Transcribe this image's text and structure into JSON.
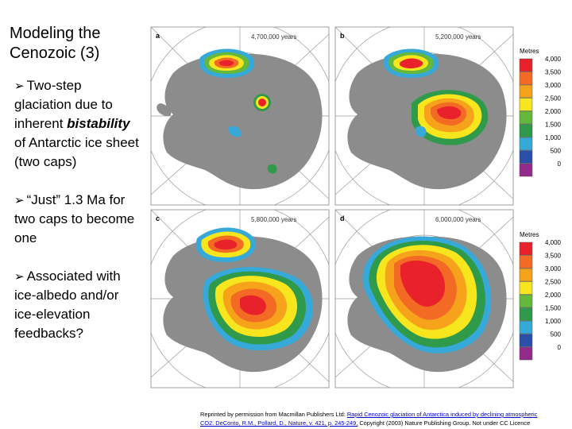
{
  "slide": {
    "title_line1": "Modeling the",
    "title_line2": "Cenozoic (3)",
    "bullets": [
      {
        "text_before": "Two-step glaciation due to inherent ",
        "emphasis": "bistability",
        "text_after": " of Antarctic ice sheet (two caps)"
      },
      {
        "text_before": "“Just” 1.3 Ma for two caps to become one",
        "emphasis": "",
        "text_after": ""
      },
      {
        "text_before": "Associated with ice-albedo and/or ice-elevation feedbacks?",
        "emphasis": "",
        "text_after": ""
      }
    ],
    "bullet_icon": "arrow-bullet-icon"
  },
  "figure": {
    "panels": [
      {
        "letter": "a",
        "years": "4,700,000  years"
      },
      {
        "letter": "b",
        "years": "5,200,000  years"
      },
      {
        "letter": "c",
        "years": "5,800,000  years"
      },
      {
        "letter": "d",
        "years": "6,000,000  years"
      }
    ],
    "legend_title": "Metres",
    "legend": [
      {
        "label": "4,000",
        "color": "#e8212a"
      },
      {
        "label": "3,500",
        "color": "#f36a24"
      },
      {
        "label": "3,000",
        "color": "#f6a31b"
      },
      {
        "label": "2,500",
        "color": "#f7e51e"
      },
      {
        "label": "2,000",
        "color": "#64b83c"
      },
      {
        "label": "1,500",
        "color": "#2e9a4a"
      },
      {
        "label": "1,000",
        "color": "#36a9d8"
      },
      {
        "label": "500",
        "color": "#2b4fa8"
      },
      {
        "label": "0",
        "color": "#932b8c"
      }
    ],
    "land_color": "#8c8c8c"
  },
  "caption": {
    "prefix": "Reprinted by permission from Macmillan Publishers Ltd: ",
    "link1": "Rapid Cenozoic glaciation of Antarctica induced by declining atmospheric",
    "link2": "CO2. DeConto, R.M., Pollard, D., Nature, v. 421, p. 245-249,",
    "suffix": " Copyright (2003) Nature Publishing Group. Not under CC Licence"
  }
}
